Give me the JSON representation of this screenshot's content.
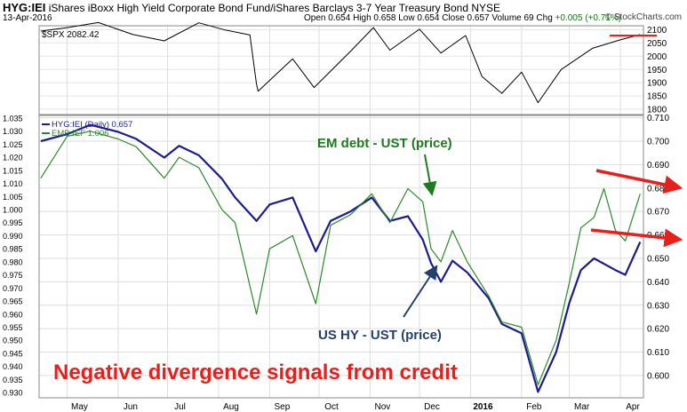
{
  "header": {
    "symbol": "HYG:IEI",
    "description": "iShares iBoxx High Yield Corporate Bond Fund/iShares Barclays 3-7 Year Treasury Bond",
    "exchange": "NYSE",
    "date": "13-Apr-2016",
    "open_label": "Open",
    "open": "0.654",
    "high_label": "High",
    "high": "0.658",
    "low_label": "Low",
    "low": "0.654",
    "close_label": "Close",
    "close": "0.657",
    "volume_label": "Volume",
    "volume": "69",
    "chg_label": "Chg",
    "chg": "+0.005 (+0.71%)",
    "brand": "© StockCharts.com"
  },
  "chart_data": [
    {
      "type": "line",
      "panel": "top",
      "legend": "$SPX 2082.42",
      "series": [
        {
          "name": "$SPX",
          "color": "#000000",
          "x": [
            "2015-04-15",
            "2015-05-01",
            "2015-05-20",
            "2015-06-10",
            "2015-06-29",
            "2015-07-20",
            "2015-08-05",
            "2015-08-20",
            "2015-08-24",
            "2015-08-25",
            "2015-09-15",
            "2015-09-28",
            "2015-10-20",
            "2015-11-03",
            "2015-11-13",
            "2015-12-01",
            "2015-12-14",
            "2015-12-29",
            "2016-01-08",
            "2016-01-20",
            "2016-02-01",
            "2016-02-11",
            "2016-02-25",
            "2016-03-15",
            "2016-03-31",
            "2016-04-13"
          ],
          "values": [
            2095,
            2108,
            2127,
            2082,
            2058,
            2126,
            2099,
            2080,
            1895,
            1868,
            1990,
            1882,
            2018,
            2108,
            2023,
            2102,
            2012,
            2078,
            1923,
            1860,
            1940,
            1825,
            1950,
            2030,
            2060,
            2082
          ]
        }
      ],
      "annotations": [
        {
          "type": "horizontal-arrow",
          "y": 2078,
          "color": "#e8201c"
        }
      ],
      "ylim": [
        1780,
        2115
      ],
      "yticks": [
        "2100",
        "2050",
        "2000",
        "1950",
        "1900",
        "1850",
        "1800"
      ],
      "ytick_values": [
        2100,
        2050,
        2000,
        1950,
        1900,
        1850,
        1800
      ]
    },
    {
      "type": "line",
      "panel": "main",
      "legend": [
        {
          "label": "HYG:IEI (Daily) 0.657",
          "color": "#1c1c8c"
        },
        {
          "label": "EMB:IEF 1.006",
          "color": "#2a8a2a"
        }
      ],
      "series": [
        {
          "name": "HYG:IEI",
          "axis": "right",
          "color": "#1c1c8c",
          "width": 2.2,
          "x": [
            "2015-04-15",
            "2015-05-01",
            "2015-05-15",
            "2015-06-01",
            "2015-06-12",
            "2015-06-29",
            "2015-07-08",
            "2015-07-20",
            "2015-08-03",
            "2015-08-11",
            "2015-08-24",
            "2015-09-01",
            "2015-09-15",
            "2015-09-29",
            "2015-10-08",
            "2015-10-20",
            "2015-11-02",
            "2015-11-13",
            "2015-11-24",
            "2015-12-03",
            "2015-12-08",
            "2015-12-14",
            "2015-12-21",
            "2015-12-30",
            "2016-01-12",
            "2016-01-20",
            "2016-02-01",
            "2016-02-11",
            "2016-02-22",
            "2016-03-01",
            "2016-03-08",
            "2016-03-16",
            "2016-03-29",
            "2016-04-04",
            "2016-04-13"
          ],
          "values": [
            0.7,
            0.703,
            0.707,
            0.704,
            0.701,
            0.693,
            0.698,
            0.694,
            0.684,
            0.676,
            0.666,
            0.673,
            0.676,
            0.653,
            0.666,
            0.67,
            0.676,
            0.666,
            0.668,
            0.658,
            0.648,
            0.64,
            0.649,
            0.644,
            0.633,
            0.622,
            0.618,
            0.593,
            0.61,
            0.631,
            0.645,
            0.65,
            0.645,
            0.643,
            0.657
          ]
        },
        {
          "name": "EMB:IEF",
          "axis": "left",
          "color": "#2a8a2a",
          "width": 1.2,
          "x": [
            "2015-04-15",
            "2015-05-01",
            "2015-05-15",
            "2015-06-01",
            "2015-06-12",
            "2015-06-29",
            "2015-07-08",
            "2015-07-20",
            "2015-08-03",
            "2015-08-11",
            "2015-08-24",
            "2015-09-01",
            "2015-09-15",
            "2015-09-29",
            "2015-10-08",
            "2015-10-20",
            "2015-11-02",
            "2015-11-13",
            "2015-11-24",
            "2015-12-03",
            "2015-12-08",
            "2015-12-14",
            "2015-12-21",
            "2015-12-30",
            "2016-01-12",
            "2016-01-20",
            "2016-02-01",
            "2016-02-11",
            "2016-02-22",
            "2016-03-01",
            "2016-03-08",
            "2016-03-16",
            "2016-03-22",
            "2016-03-29",
            "2016-04-04",
            "2016-04-13"
          ],
          "values": [
            1.012,
            1.028,
            1.03,
            1.027,
            1.024,
            1.012,
            1.02,
            1.016,
            1.0,
            0.995,
            0.96,
            0.985,
            0.99,
            0.964,
            0.994,
            0.998,
            1.006,
            0.995,
            1.008,
            1.003,
            0.985,
            0.98,
            0.992,
            0.98,
            0.967,
            0.957,
            0.955,
            0.933,
            0.95,
            0.972,
            0.993,
            0.997,
            1.008,
            0.992,
            0.988,
            1.006
          ]
        }
      ],
      "annotations": [
        {
          "text": "EM debt - UST (price)",
          "color": "#1e7a1e"
        },
        {
          "text": "US HY - UST (price)",
          "color": "#23406b"
        },
        {
          "text": "Negative divergence signals from credit",
          "color": "#e8201c"
        }
      ],
      "yticks_left": [
        "1.035",
        "1.030",
        "1.025",
        "1.020",
        "1.015",
        "1.010",
        "1.005",
        "1.000",
        "0.995",
        "0.990",
        "0.985",
        "0.980",
        "0.975",
        "0.970",
        "0.965",
        "0.960",
        "0.955",
        "0.950",
        "0.945",
        "0.940",
        "0.935",
        "0.930"
      ],
      "yticks_left_values": [
        1.035,
        1.03,
        1.025,
        1.02,
        1.015,
        1.01,
        1.005,
        1.0,
        0.995,
        0.99,
        0.985,
        0.98,
        0.975,
        0.97,
        0.965,
        0.96,
        0.955,
        0.95,
        0.945,
        0.94,
        0.935,
        0.93
      ],
      "ylim_left": [
        0.928,
        1.036
      ],
      "yticks_right": [
        "0.710",
        "0.700",
        "0.690",
        "0.680",
        "0.670",
        "0.660",
        "0.650",
        "0.640",
        "0.630",
        "0.620",
        "0.610",
        "0.600"
      ],
      "yticks_right_values": [
        0.71,
        0.7,
        0.69,
        0.68,
        0.67,
        0.66,
        0.65,
        0.64,
        0.63,
        0.62,
        0.61,
        0.6
      ],
      "ylim_right": [
        0.5905,
        0.711
      ],
      "xticks": [
        "May",
        "Jun",
        "Jul",
        "Aug",
        "Sep",
        "Oct",
        "Nov",
        "Dec",
        "2016",
        "Feb",
        "Mar",
        "Apr"
      ],
      "xtick_dates": [
        "2015-05-01",
        "2015-06-01",
        "2015-07-01",
        "2015-08-01",
        "2015-09-01",
        "2015-10-01",
        "2015-11-01",
        "2015-12-01",
        "2016-01-01",
        "2016-02-01",
        "2016-03-01",
        "2016-04-01"
      ],
      "xlim": [
        "2015-04-14",
        "2016-04-15"
      ],
      "grid": true
    }
  ]
}
